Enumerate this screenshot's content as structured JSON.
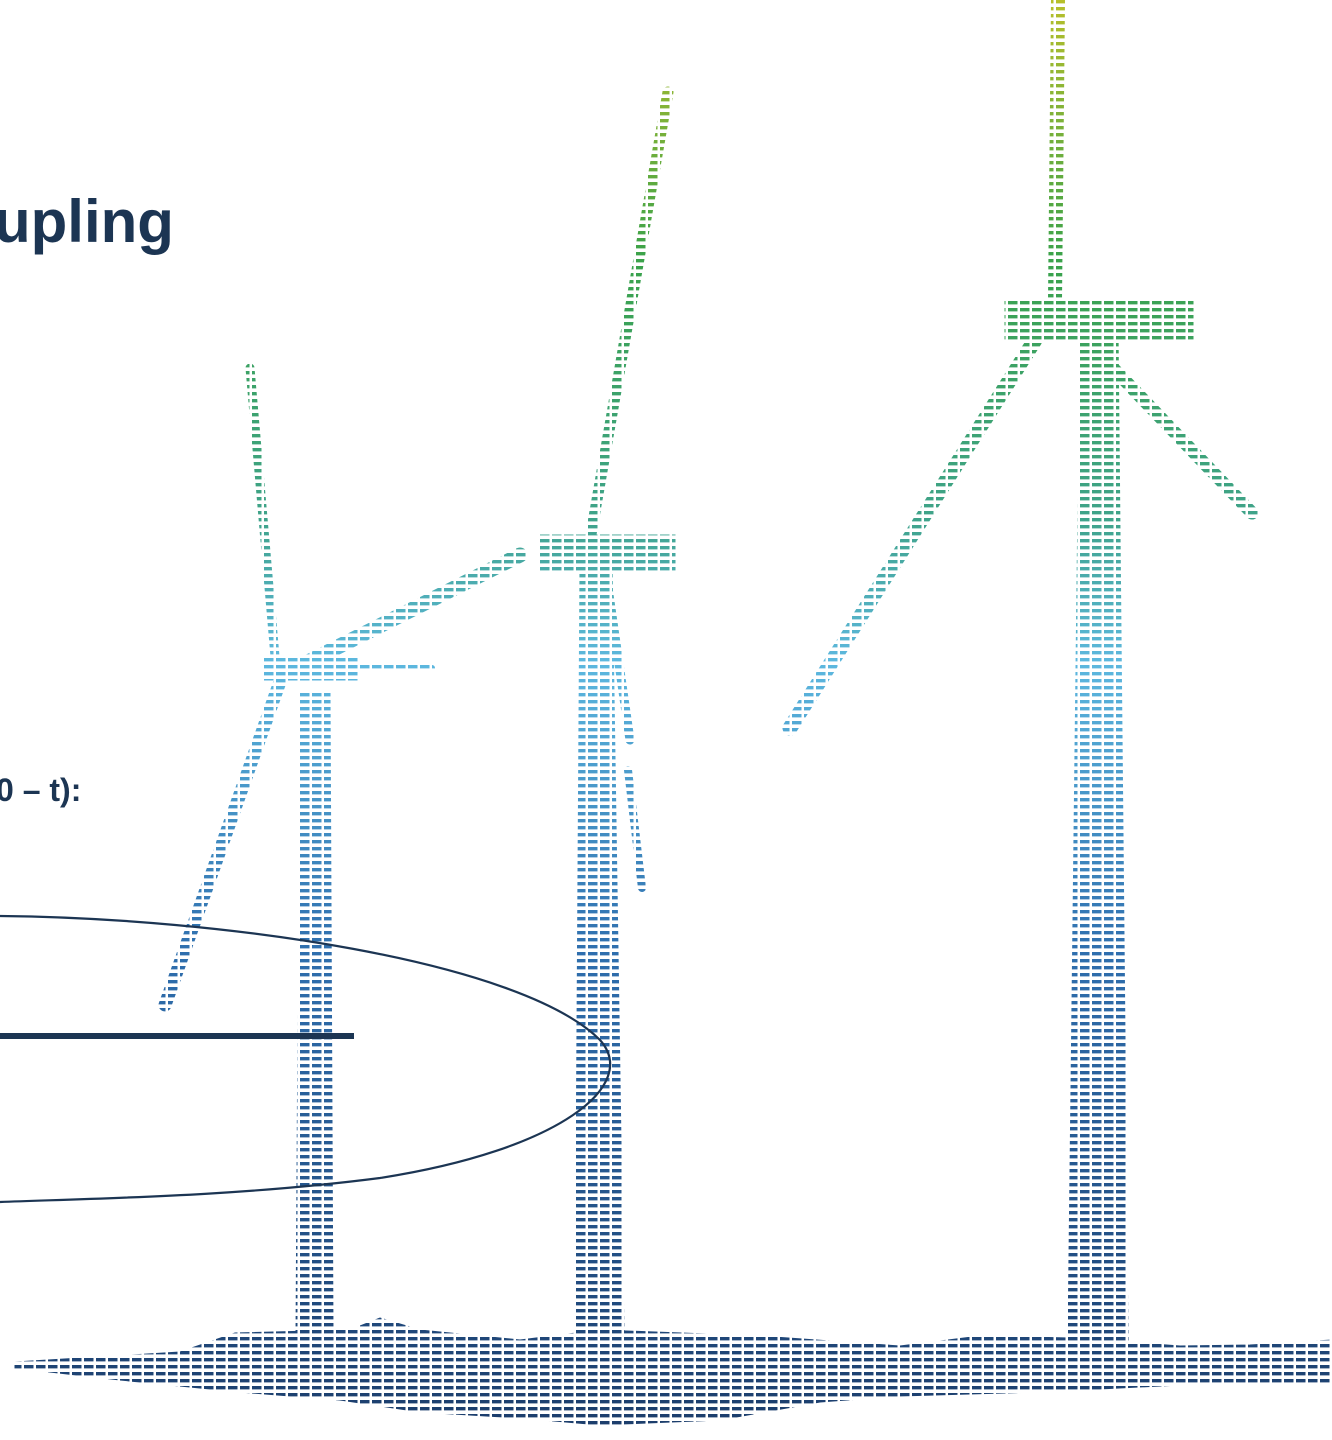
{
  "slide": {
    "title": "upling",
    "subtitle": "0 – t):"
  },
  "illustration": {
    "name": "wind-turbines-dashed-graphic",
    "colors": {
      "top": "#b7bf2a",
      "upper": "#3aa24a",
      "middle": "#5db8df",
      "lower": "#2f6fae",
      "bottom": "#1b3c6a"
    }
  },
  "accent": {
    "text": "#1c3553",
    "ellipse": "#1c3553"
  }
}
